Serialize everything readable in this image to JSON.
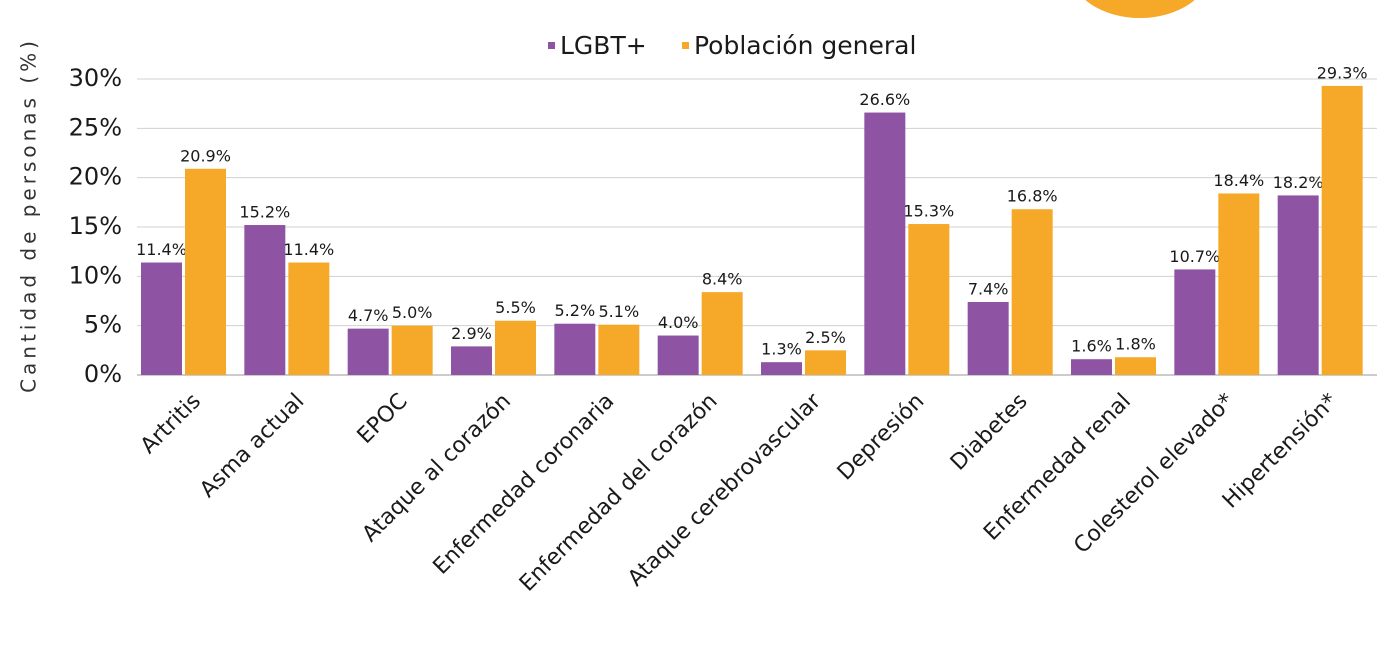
{
  "chart_data": {
    "type": "bar",
    "y_label": "Cantidad de personas (%)",
    "categories": [
      "Artritis",
      "Asma actual",
      "EPOC",
      "Ataque al corazón",
      "Enfermedad coronaria",
      "Enfermedad del corazón",
      "Ataque cerebrovascular",
      "Depresión",
      "Diabetes",
      "Enfermedad renal",
      "Colesterol elevado*",
      "Hipertensión*"
    ],
    "series": [
      {
        "name": "LGBT+",
        "color": "#8e54a3",
        "values": [
          11.4,
          15.2,
          4.7,
          2.9,
          5.2,
          4.0,
          1.3,
          26.6,
          7.4,
          1.6,
          10.7,
          18.2
        ],
        "value_labels": [
          "11.4%",
          "15.2%",
          "4.7%",
          "2.9%",
          "5.2%",
          "4.0%",
          "1.3%",
          "26.6%",
          "7.4%",
          "1.6%",
          "10.7%",
          "18.2%"
        ]
      },
      {
        "name": "Población general",
        "color": "#f6a829",
        "values": [
          20.9,
          11.4,
          5.0,
          5.5,
          5.1,
          8.4,
          2.5,
          15.3,
          16.8,
          1.8,
          18.4,
          29.3
        ],
        "value_labels": [
          "20.9%",
          "11.4%",
          "5.0%",
          "5.5%",
          "5.1%",
          "8.4%",
          "2.5%",
          "15.3%",
          "16.8%",
          "1.8%",
          "18.4%",
          "29.3%"
        ]
      }
    ],
    "ylim": [
      0,
      30
    ],
    "yticks": [
      {
        "value": 0,
        "label": "0%"
      },
      {
        "value": 5,
        "label": "5%"
      },
      {
        "value": 10,
        "label": "10%"
      },
      {
        "value": 15,
        "label": "15%"
      },
      {
        "value": 20,
        "label": "20%"
      },
      {
        "value": 25,
        "label": "25%"
      },
      {
        "value": 30,
        "label": "30%"
      }
    ],
    "grid": true,
    "legend": "top"
  }
}
